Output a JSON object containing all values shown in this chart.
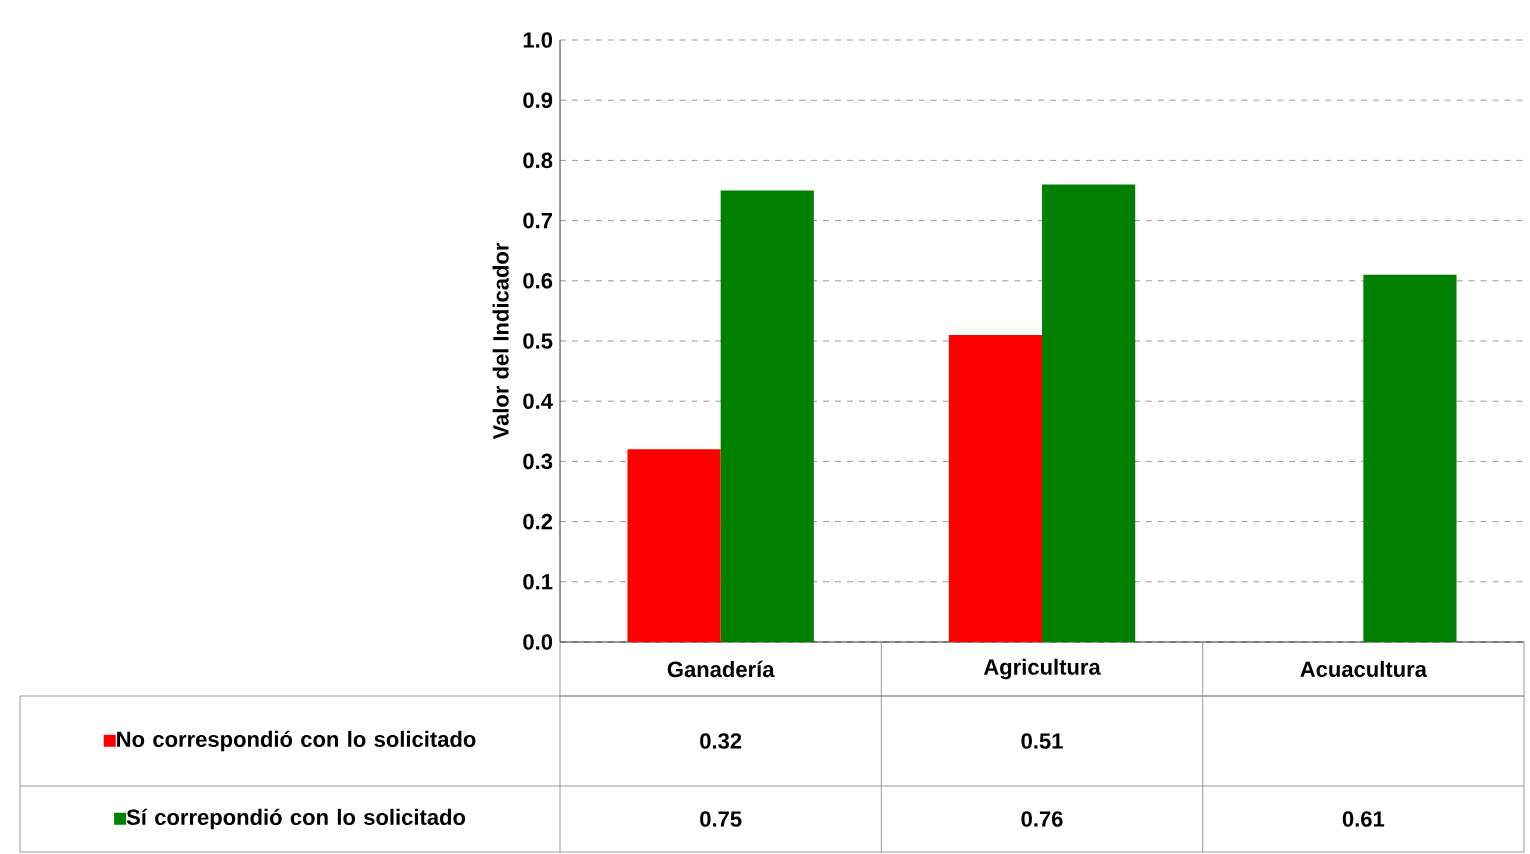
{
  "chart_data": {
    "type": "bar",
    "ylabel": "Valor del Indicador",
    "categories": [
      "Ganadería",
      "Agricultura",
      "Acuacultura"
    ],
    "series": [
      {
        "name": "No correspondió con lo solicitado",
        "color": "#ff0000",
        "values": [
          0.32,
          0.51,
          null
        ]
      },
      {
        "name": "Sí correpondió con lo solicitado",
        "color": "#008000",
        "values": [
          0.75,
          0.76,
          0.61
        ]
      }
    ],
    "ylim": [
      0,
      1
    ],
    "yticks": [
      {
        "value": 0,
        "label": "0.0"
      },
      {
        "value": 0.1,
        "label": "0.1"
      },
      {
        "value": 0.2,
        "label": "0.2"
      },
      {
        "value": 0.3,
        "label": "0.3"
      },
      {
        "value": 0.4,
        "label": "0.4"
      },
      {
        "value": 0.5,
        "label": "0.5"
      },
      {
        "value": 0.6,
        "label": "0.6"
      },
      {
        "value": 0.7,
        "label": "0.7"
      },
      {
        "value": 0.8,
        "label": "0.8"
      },
      {
        "value": 0.9,
        "label": "0.9"
      },
      {
        "value": 1,
        "label": "1.0"
      }
    ],
    "grid": "y",
    "data_labels": true,
    "legend": "bottom left"
  }
}
